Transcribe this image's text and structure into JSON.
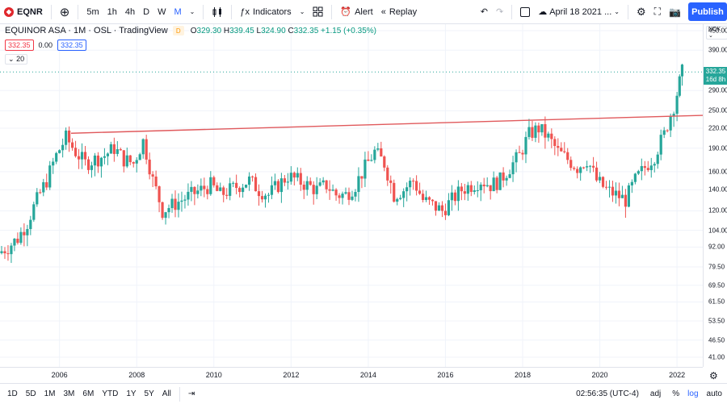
{
  "toolbar": {
    "symbol": "EQNR",
    "intervals": [
      "5m",
      "1h",
      "4h",
      "D",
      "W",
      "M"
    ],
    "active_interval": "M",
    "indicators": "Indicators",
    "alert": "Alert",
    "replay": "Replay",
    "date_range": "April 18 2021 ...",
    "publish": "Publish"
  },
  "legend": {
    "title": "EQUINOR ASA · 1M · OSL · TradingView",
    "badge": "D",
    "open_label": "O",
    "open": "329.30",
    "high_label": "H",
    "high": "339.45",
    "low_label": "L",
    "low": "324.90",
    "close_label": "C",
    "close": "332.35",
    "change": "+1.15 (+0.35%)",
    "price1": "332.35",
    "spread": "0.00",
    "price2": "332.35",
    "volume_label": "20"
  },
  "price_axis": {
    "currency": "NOK",
    "labels": [
      "450.00",
      "390.00",
      "290.00",
      "250.00",
      "220.00",
      "190.00",
      "160.00",
      "140.00",
      "120.00",
      "104.00",
      "92.00",
      "79.50",
      "69.50",
      "61.50",
      "53.50",
      "46.50",
      "41.00"
    ],
    "last_price": "332.35",
    "countdown": "16d 8h"
  },
  "time_axis": {
    "labels": [
      "2006",
      "2008",
      "2010",
      "2012",
      "2014",
      "2016",
      "2018",
      "2020",
      "2022"
    ]
  },
  "bottom": {
    "ranges": [
      "1D",
      "5D",
      "1M",
      "3M",
      "6M",
      "YTD",
      "1Y",
      "5Y",
      "All"
    ],
    "clock": "02:56:35 (UTC-4)",
    "adj": "adj",
    "pct": "%",
    "log": "log",
    "auto": "auto"
  },
  "colors": {
    "up": "#26a69a",
    "down": "#ef5350",
    "trendline": "#e0595c",
    "accent": "#2962ff"
  },
  "chart_data": {
    "type": "candlestick",
    "title": "EQUINOR ASA · 1M · OSL · TradingView",
    "scale": "log",
    "price_range": [
      41,
      450
    ],
    "x_range": [
      2004.5,
      2022.5
    ],
    "trendline": {
      "points": [
        [
          2006.3,
          212
        ],
        [
          2022.8,
          242
        ]
      ]
    },
    "closes_by_quarter": [
      {
        "t": 2004.5,
        "c": 88
      },
      {
        "t": 2004.75,
        "c": 92
      },
      {
        "t": 2005.0,
        "c": 98
      },
      {
        "t": 2005.25,
        "c": 110
      },
      {
        "t": 2005.5,
        "c": 130
      },
      {
        "t": 2005.75,
        "c": 150
      },
      {
        "t": 2006.0,
        "c": 180
      },
      {
        "t": 2006.25,
        "c": 205
      },
      {
        "t": 2006.5,
        "c": 185
      },
      {
        "t": 2006.75,
        "c": 170
      },
      {
        "t": 2007.0,
        "c": 175
      },
      {
        "t": 2007.25,
        "c": 180
      },
      {
        "t": 2007.5,
        "c": 190
      },
      {
        "t": 2007.75,
        "c": 175
      },
      {
        "t": 2008.0,
        "c": 170
      },
      {
        "t": 2008.25,
        "c": 200
      },
      {
        "t": 2008.5,
        "c": 150
      },
      {
        "t": 2008.75,
        "c": 120
      },
      {
        "t": 2009.0,
        "c": 125
      },
      {
        "t": 2009.25,
        "c": 130
      },
      {
        "t": 2009.5,
        "c": 135
      },
      {
        "t": 2009.75,
        "c": 140
      },
      {
        "t": 2010.0,
        "c": 145
      },
      {
        "t": 2010.25,
        "c": 135
      },
      {
        "t": 2010.5,
        "c": 140
      },
      {
        "t": 2010.75,
        "c": 145
      },
      {
        "t": 2011.0,
        "c": 150
      },
      {
        "t": 2011.25,
        "c": 140
      },
      {
        "t": 2011.5,
        "c": 135
      },
      {
        "t": 2011.75,
        "c": 145
      },
      {
        "t": 2012.0,
        "c": 155
      },
      {
        "t": 2012.25,
        "c": 150
      },
      {
        "t": 2012.5,
        "c": 145
      },
      {
        "t": 2012.75,
        "c": 140
      },
      {
        "t": 2013.0,
        "c": 145
      },
      {
        "t": 2013.25,
        "c": 135
      },
      {
        "t": 2013.5,
        "c": 135
      },
      {
        "t": 2013.75,
        "c": 145
      },
      {
        "t": 2014.0,
        "c": 165
      },
      {
        "t": 2014.25,
        "c": 185
      },
      {
        "t": 2014.5,
        "c": 170
      },
      {
        "t": 2014.75,
        "c": 135
      },
      {
        "t": 2015.0,
        "c": 140
      },
      {
        "t": 2015.25,
        "c": 150
      },
      {
        "t": 2015.5,
        "c": 130
      },
      {
        "t": 2015.75,
        "c": 125
      },
      {
        "t": 2016.0,
        "c": 120
      },
      {
        "t": 2016.25,
        "c": 130
      },
      {
        "t": 2016.5,
        "c": 140
      },
      {
        "t": 2016.75,
        "c": 145
      },
      {
        "t": 2017.0,
        "c": 150
      },
      {
        "t": 2017.25,
        "c": 145
      },
      {
        "t": 2017.5,
        "c": 150
      },
      {
        "t": 2017.75,
        "c": 165
      },
      {
        "t": 2018.0,
        "c": 180
      },
      {
        "t": 2018.25,
        "c": 210
      },
      {
        "t": 2018.5,
        "c": 220
      },
      {
        "t": 2018.75,
        "c": 205
      },
      {
        "t": 2019.0,
        "c": 185
      },
      {
        "t": 2019.25,
        "c": 175
      },
      {
        "t": 2019.5,
        "c": 165
      },
      {
        "t": 2019.75,
        "c": 175
      },
      {
        "t": 2020.0,
        "c": 150
      },
      {
        "t": 2020.25,
        "c": 140
      },
      {
        "t": 2020.5,
        "c": 135
      },
      {
        "t": 2020.75,
        "c": 130
      },
      {
        "t": 2021.0,
        "c": 150
      },
      {
        "t": 2021.25,
        "c": 165
      },
      {
        "t": 2021.5,
        "c": 180
      },
      {
        "t": 2021.75,
        "c": 210
      },
      {
        "t": 2022.0,
        "c": 260
      },
      {
        "t": 2022.2,
        "c": 332
      }
    ]
  }
}
